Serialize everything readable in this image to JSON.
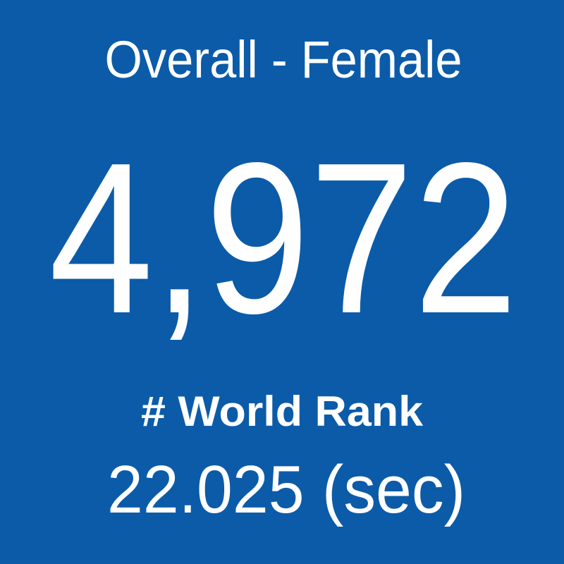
{
  "card": {
    "title": "Overall - Female",
    "value": "4,972",
    "label": "# World Rank",
    "time": "22.025 (sec)"
  }
}
